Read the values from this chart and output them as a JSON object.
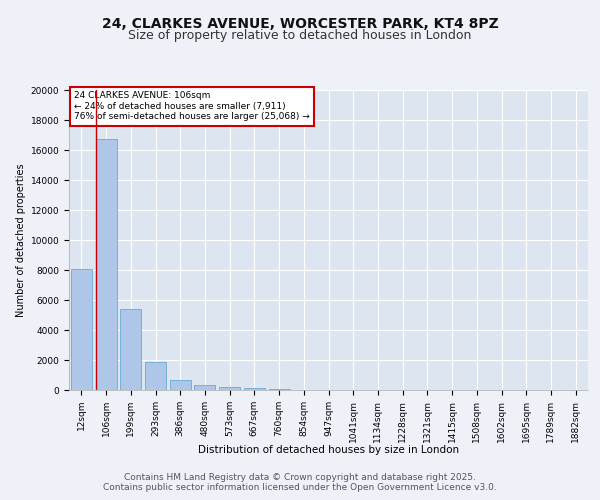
{
  "title_line1": "24, CLARKES AVENUE, WORCESTER PARK, KT4 8PZ",
  "title_line2": "Size of property relative to detached houses in London",
  "xlabel": "Distribution of detached houses by size in London",
  "ylabel": "Number of detached properties",
  "categories": [
    "12sqm",
    "106sqm",
    "199sqm",
    "293sqm",
    "386sqm",
    "480sqm",
    "573sqm",
    "667sqm",
    "760sqm",
    "854sqm",
    "947sqm",
    "1041sqm",
    "1134sqm",
    "1228sqm",
    "1321sqm",
    "1415sqm",
    "1508sqm",
    "1602sqm",
    "1695sqm",
    "1789sqm",
    "1882sqm"
  ],
  "values": [
    8100,
    16700,
    5400,
    1850,
    650,
    330,
    200,
    130,
    90,
    0,
    0,
    0,
    0,
    0,
    0,
    0,
    0,
    0,
    0,
    0,
    0
  ],
  "bar_color": "#aec6e8",
  "bar_edge_color": "#6aaad4",
  "highlight_line_color": "#cc0000",
  "annotation_text": "24 CLARKES AVENUE: 106sqm\n← 24% of detached houses are smaller (7,911)\n76% of semi-detached houses are larger (25,068) →",
  "annotation_box_color": "#ffffff",
  "annotation_box_edge_color": "#cc0000",
  "ylim": [
    0,
    20000
  ],
  "yticks": [
    0,
    2000,
    4000,
    6000,
    8000,
    10000,
    12000,
    14000,
    16000,
    18000,
    20000
  ],
  "background_color": "#eef2f8",
  "plot_bg_color": "#dde5f0",
  "grid_color": "#ffffff",
  "footer_line1": "Contains HM Land Registry data © Crown copyright and database right 2025.",
  "footer_line2": "Contains public sector information licensed under the Open Government Licence v3.0.",
  "title_fontsize": 10,
  "subtitle_fontsize": 9,
  "tick_fontsize": 6.5,
  "ylabel_fontsize": 7,
  "xlabel_fontsize": 7.5,
  "footer_fontsize": 6.5
}
